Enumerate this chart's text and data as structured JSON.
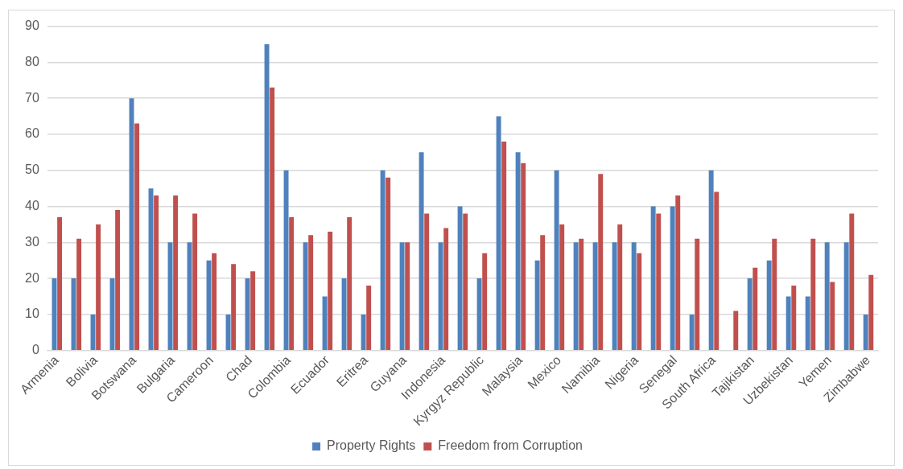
{
  "chart_data": {
    "type": "bar",
    "categories": [
      "Armenia",
      null,
      "Bolivia",
      null,
      "Botswana",
      null,
      "Bulgaria",
      null,
      "Cameroon",
      null,
      "Chad",
      null,
      "Colombia",
      null,
      "Ecuador",
      null,
      "Eritrea",
      null,
      "Guyana",
      null,
      "Indonesia",
      null,
      "Kyrgyz Republic",
      null,
      "Malaysia",
      null,
      "Mexico",
      null,
      "Namibia",
      null,
      "Nigeria",
      null,
      "Senegal",
      null,
      "South Africa",
      null,
      "Tajikistan",
      null,
      "Uzbekistan",
      null,
      "Yemen",
      null,
      "Zimbabwe"
    ],
    "series": [
      {
        "name": "Property Rights",
        "color": "#4f81bd",
        "values": [
          20,
          20,
          10,
          20,
          70,
          45,
          30,
          30,
          25,
          10,
          20,
          85,
          50,
          30,
          15,
          20,
          10,
          50,
          30,
          55,
          30,
          40,
          20,
          65,
          55,
          25,
          50,
          30,
          30,
          30,
          30,
          40,
          40,
          10,
          50,
          null,
          20,
          25,
          15,
          15,
          30,
          30,
          10
        ]
      },
      {
        "name": "Freedom from Corruption",
        "color": "#c0504d",
        "values": [
          37,
          31,
          35,
          39,
          63,
          43,
          43,
          38,
          27,
          24,
          22,
          73,
          37,
          32,
          33,
          37,
          18,
          48,
          30,
          38,
          34,
          38,
          27,
          58,
          52,
          32,
          35,
          31,
          49,
          35,
          27,
          38,
          43,
          31,
          44,
          11,
          23,
          31,
          18,
          31,
          19,
          38,
          21
        ]
      }
    ],
    "ylim": [
      0,
      90
    ],
    "yticks": [
      0,
      10,
      20,
      30,
      40,
      50,
      60,
      70,
      80,
      90
    ],
    "grid": "y",
    "legend": "bottom"
  }
}
